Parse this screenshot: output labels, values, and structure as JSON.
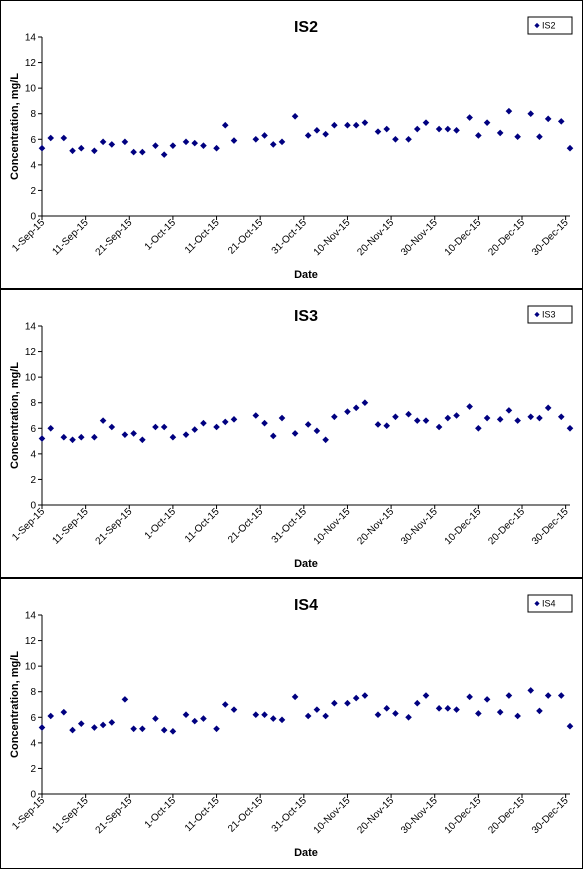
{
  "chart_data": [
    {
      "type": "scatter",
      "title": "IS2",
      "xlabel": "Date",
      "ylabel": "Concentration, mg/L",
      "ylim": [
        0,
        14
      ],
      "yticks": [
        "0",
        "2",
        "4",
        "6",
        "8",
        "10",
        "12",
        "14"
      ],
      "xlim": [
        "2015-09-01",
        "2015-12-31"
      ],
      "xticks": [
        "1-Sep-15",
        "11-Sep-15",
        "21-Sep-15",
        "1-Oct-15",
        "11-Oct-15",
        "21-Oct-15",
        "31-Oct-15",
        "10-Nov-15",
        "20-Nov-15",
        "30-Nov-15",
        "10-Dec-15",
        "20-Dec-15",
        "30-Dec-15"
      ],
      "grid": false,
      "legend_position": "top-right",
      "marker_color": "#000080",
      "series": [
        {
          "name": "IS2",
          "points": [
            [
              "2015-09-01",
              5.3
            ],
            [
              "2015-09-03",
              6.1
            ],
            [
              "2015-09-06",
              6.1
            ],
            [
              "2015-09-08",
              5.1
            ],
            [
              "2015-09-10",
              5.3
            ],
            [
              "2015-09-13",
              5.1
            ],
            [
              "2015-09-15",
              5.8
            ],
            [
              "2015-09-17",
              5.6
            ],
            [
              "2015-09-20",
              5.8
            ],
            [
              "2015-09-22",
              5.0
            ],
            [
              "2015-09-24",
              5.0
            ],
            [
              "2015-09-27",
              5.5
            ],
            [
              "2015-09-29",
              4.8
            ],
            [
              "2015-10-01",
              5.5
            ],
            [
              "2015-10-04",
              5.8
            ],
            [
              "2015-10-06",
              5.7
            ],
            [
              "2015-10-08",
              5.5
            ],
            [
              "2015-10-11",
              5.3
            ],
            [
              "2015-10-13",
              7.1
            ],
            [
              "2015-10-15",
              5.9
            ],
            [
              "2015-10-20",
              6.0
            ],
            [
              "2015-10-22",
              6.3
            ],
            [
              "2015-10-24",
              5.6
            ],
            [
              "2015-10-26",
              5.8
            ],
            [
              "2015-10-29",
              7.8
            ],
            [
              "2015-11-01",
              6.3
            ],
            [
              "2015-11-03",
              6.7
            ],
            [
              "2015-11-05",
              6.4
            ],
            [
              "2015-11-07",
              7.1
            ],
            [
              "2015-11-10",
              7.1
            ],
            [
              "2015-11-12",
              7.1
            ],
            [
              "2015-11-14",
              7.3
            ],
            [
              "2015-11-17",
              6.6
            ],
            [
              "2015-11-19",
              6.8
            ],
            [
              "2015-11-21",
              6.0
            ],
            [
              "2015-11-24",
              6.0
            ],
            [
              "2015-11-26",
              6.8
            ],
            [
              "2015-11-28",
              7.3
            ],
            [
              "2015-12-01",
              6.8
            ],
            [
              "2015-12-03",
              6.8
            ],
            [
              "2015-12-05",
              6.7
            ],
            [
              "2015-12-08",
              7.7
            ],
            [
              "2015-12-10",
              6.3
            ],
            [
              "2015-12-12",
              7.3
            ],
            [
              "2015-12-15",
              6.5
            ],
            [
              "2015-12-17",
              8.2
            ],
            [
              "2015-12-19",
              6.2
            ],
            [
              "2015-12-22",
              8.0
            ],
            [
              "2015-12-24",
              6.2
            ],
            [
              "2015-12-26",
              7.6
            ],
            [
              "2015-12-29",
              7.4
            ],
            [
              "2015-12-31",
              5.3
            ]
          ]
        }
      ]
    },
    {
      "type": "scatter",
      "title": "IS3",
      "xlabel": "Date",
      "ylabel": "Concentration, mg/L",
      "ylim": [
        0,
        14
      ],
      "yticks": [
        "0",
        "2",
        "4",
        "6",
        "8",
        "10",
        "12",
        "14"
      ],
      "xlim": [
        "2015-09-01",
        "2015-12-31"
      ],
      "xticks": [
        "1-Sep-15",
        "11-Sep-15",
        "21-Sep-15",
        "1-Oct-15",
        "11-Oct-15",
        "21-Oct-15",
        "31-Oct-15",
        "10-Nov-15",
        "20-Nov-15",
        "30-Nov-15",
        "10-Dec-15",
        "20-Dec-15",
        "30-Dec-15"
      ],
      "grid": false,
      "legend_position": "top-right",
      "marker_color": "#000080",
      "series": [
        {
          "name": "IS3",
          "points": [
            [
              "2015-09-01",
              5.2
            ],
            [
              "2015-09-03",
              6.0
            ],
            [
              "2015-09-06",
              5.3
            ],
            [
              "2015-09-08",
              5.1
            ],
            [
              "2015-09-10",
              5.3
            ],
            [
              "2015-09-13",
              5.3
            ],
            [
              "2015-09-15",
              6.6
            ],
            [
              "2015-09-17",
              6.1
            ],
            [
              "2015-09-20",
              5.5
            ],
            [
              "2015-09-22",
              5.6
            ],
            [
              "2015-09-24",
              5.1
            ],
            [
              "2015-09-27",
              6.1
            ],
            [
              "2015-09-29",
              6.1
            ],
            [
              "2015-10-01",
              5.3
            ],
            [
              "2015-10-04",
              5.5
            ],
            [
              "2015-10-06",
              5.9
            ],
            [
              "2015-10-08",
              6.4
            ],
            [
              "2015-10-11",
              6.1
            ],
            [
              "2015-10-13",
              6.5
            ],
            [
              "2015-10-15",
              6.7
            ],
            [
              "2015-10-20",
              7.0
            ],
            [
              "2015-10-22",
              6.4
            ],
            [
              "2015-10-24",
              5.4
            ],
            [
              "2015-10-26",
              6.8
            ],
            [
              "2015-10-29",
              5.6
            ],
            [
              "2015-11-01",
              6.3
            ],
            [
              "2015-11-03",
              5.8
            ],
            [
              "2015-11-05",
              5.1
            ],
            [
              "2015-11-07",
              6.9
            ],
            [
              "2015-11-10",
              7.3
            ],
            [
              "2015-11-12",
              7.6
            ],
            [
              "2015-11-14",
              8.0
            ],
            [
              "2015-11-17",
              6.3
            ],
            [
              "2015-11-19",
              6.2
            ],
            [
              "2015-11-21",
              6.9
            ],
            [
              "2015-11-24",
              7.1
            ],
            [
              "2015-11-26",
              6.6
            ],
            [
              "2015-11-28",
              6.6
            ],
            [
              "2015-12-01",
              6.1
            ],
            [
              "2015-12-03",
              6.8
            ],
            [
              "2015-12-05",
              7.0
            ],
            [
              "2015-12-08",
              7.7
            ],
            [
              "2015-12-10",
              6.0
            ],
            [
              "2015-12-12",
              6.8
            ],
            [
              "2015-12-15",
              6.7
            ],
            [
              "2015-12-17",
              7.4
            ],
            [
              "2015-12-19",
              6.6
            ],
            [
              "2015-12-22",
              6.9
            ],
            [
              "2015-12-24",
              6.8
            ],
            [
              "2015-12-26",
              7.6
            ],
            [
              "2015-12-29",
              6.9
            ],
            [
              "2015-12-31",
              6.0
            ]
          ]
        }
      ]
    },
    {
      "type": "scatter",
      "title": "IS4",
      "xlabel": "Date",
      "ylabel": "Concentration, mg/L",
      "ylim": [
        0,
        14
      ],
      "yticks": [
        "0",
        "2",
        "4",
        "6",
        "8",
        "10",
        "12",
        "14"
      ],
      "xlim": [
        "2015-09-01",
        "2015-12-31"
      ],
      "xticks": [
        "1-Sep-15",
        "11-Sep-15",
        "21-Sep-15",
        "1-Oct-15",
        "11-Oct-15",
        "21-Oct-15",
        "31-Oct-15",
        "10-Nov-15",
        "20-Nov-15",
        "30-Nov-15",
        "10-Dec-15",
        "20-Dec-15",
        "30-Dec-15"
      ],
      "grid": false,
      "legend_position": "top-right",
      "marker_color": "#000080",
      "series": [
        {
          "name": "IS4",
          "points": [
            [
              "2015-09-01",
              5.2
            ],
            [
              "2015-09-03",
              6.1
            ],
            [
              "2015-09-06",
              6.4
            ],
            [
              "2015-09-08",
              5.0
            ],
            [
              "2015-09-10",
              5.5
            ],
            [
              "2015-09-13",
              5.2
            ],
            [
              "2015-09-15",
              5.4
            ],
            [
              "2015-09-17",
              5.6
            ],
            [
              "2015-09-20",
              7.4
            ],
            [
              "2015-09-22",
              5.1
            ],
            [
              "2015-09-24",
              5.1
            ],
            [
              "2015-09-27",
              5.9
            ],
            [
              "2015-09-29",
              5.0
            ],
            [
              "2015-10-01",
              4.9
            ],
            [
              "2015-10-04",
              6.2
            ],
            [
              "2015-10-06",
              5.7
            ],
            [
              "2015-10-08",
              5.9
            ],
            [
              "2015-10-11",
              5.1
            ],
            [
              "2015-10-13",
              7.0
            ],
            [
              "2015-10-15",
              6.6
            ],
            [
              "2015-10-20",
              6.2
            ],
            [
              "2015-10-22",
              6.2
            ],
            [
              "2015-10-24",
              5.9
            ],
            [
              "2015-10-26",
              5.8
            ],
            [
              "2015-10-29",
              7.6
            ],
            [
              "2015-11-01",
              6.1
            ],
            [
              "2015-11-03",
              6.6
            ],
            [
              "2015-11-05",
              6.1
            ],
            [
              "2015-11-07",
              7.1
            ],
            [
              "2015-11-10",
              7.1
            ],
            [
              "2015-11-12",
              7.5
            ],
            [
              "2015-11-14",
              7.7
            ],
            [
              "2015-11-17",
              6.2
            ],
            [
              "2015-11-19",
              6.7
            ],
            [
              "2015-11-21",
              6.3
            ],
            [
              "2015-11-24",
              6.0
            ],
            [
              "2015-11-26",
              7.1
            ],
            [
              "2015-11-28",
              7.7
            ],
            [
              "2015-12-01",
              6.7
            ],
            [
              "2015-12-03",
              6.7
            ],
            [
              "2015-12-05",
              6.6
            ],
            [
              "2015-12-08",
              7.6
            ],
            [
              "2015-12-10",
              6.3
            ],
            [
              "2015-12-12",
              7.4
            ],
            [
              "2015-12-15",
              6.4
            ],
            [
              "2015-12-17",
              7.7
            ],
            [
              "2015-12-19",
              6.1
            ],
            [
              "2015-12-22",
              8.1
            ],
            [
              "2015-12-24",
              6.5
            ],
            [
              "2015-12-26",
              7.7
            ],
            [
              "2015-12-29",
              7.7
            ],
            [
              "2015-12-31",
              5.3
            ]
          ]
        }
      ]
    }
  ]
}
